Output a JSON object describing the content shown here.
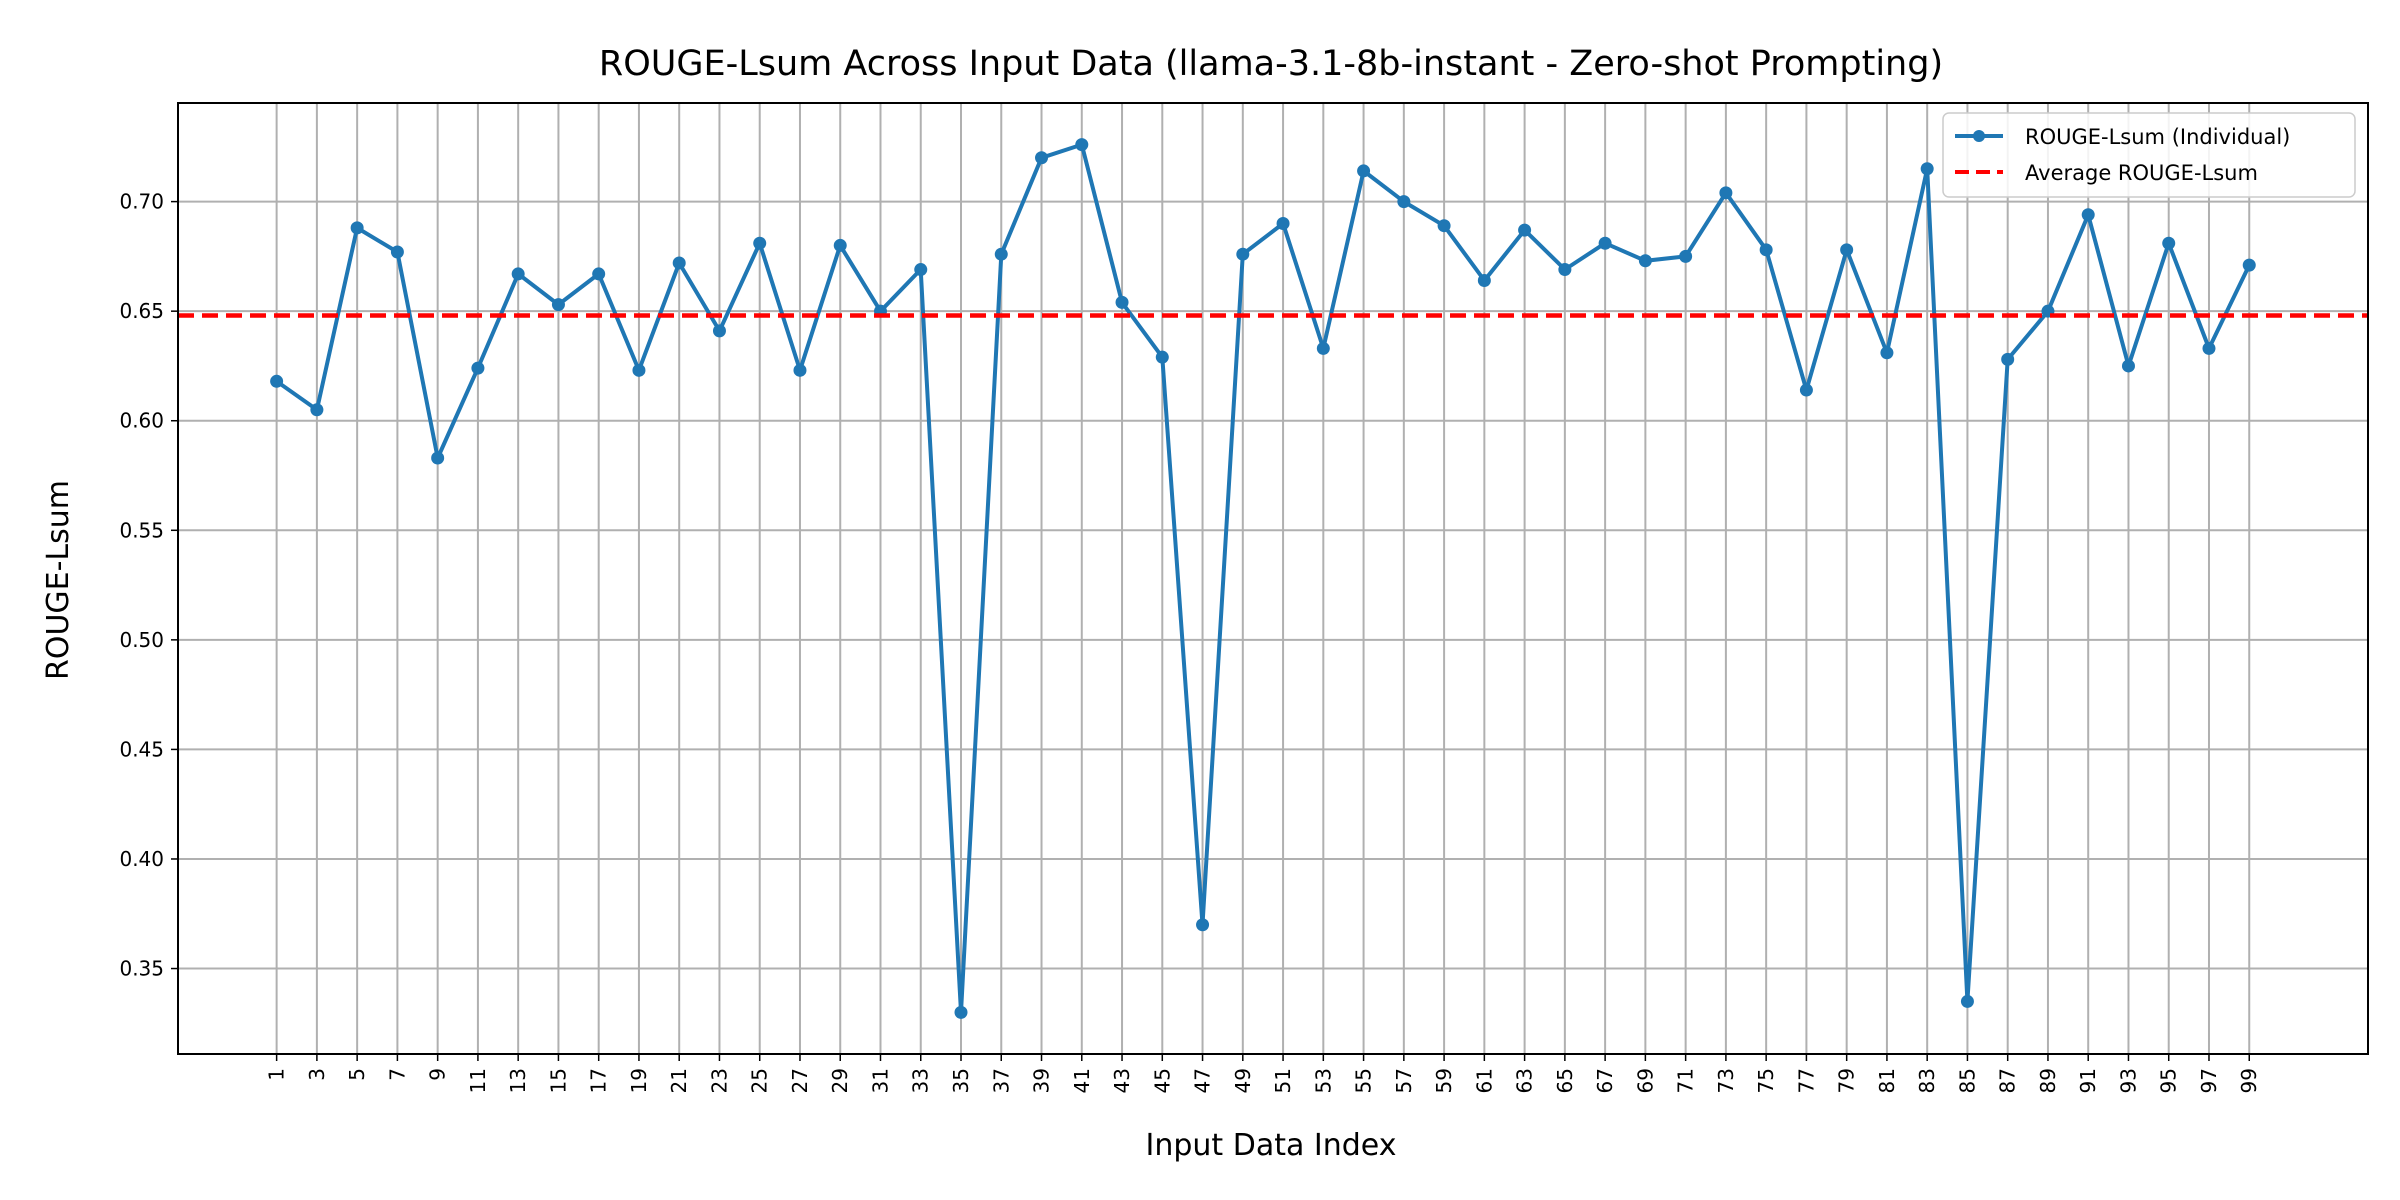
{
  "chart_data": {
    "type": "line",
    "title": "ROUGE-Lsum Across Input Data (llama-3.1-8b-instant - Zero-shot Prompting)",
    "xlabel": "Input Data Index",
    "ylabel": "ROUGE-Lsum",
    "x": [
      1,
      3,
      5,
      7,
      9,
      11,
      13,
      15,
      17,
      19,
      21,
      23,
      25,
      27,
      29,
      31,
      33,
      35,
      37,
      39,
      41,
      43,
      45,
      47,
      49,
      51,
      53,
      55,
      57,
      59,
      61,
      63,
      65,
      67,
      69,
      71,
      73,
      75,
      77,
      79,
      81,
      83,
      85,
      87,
      89,
      91,
      93,
      95,
      97,
      99
    ],
    "x_ticks": [
      "1",
      "3",
      "5",
      "7",
      "9",
      "11",
      "13",
      "15",
      "17",
      "19",
      "21",
      "23",
      "25",
      "27",
      "29",
      "31",
      "33",
      "35",
      "37",
      "39",
      "41",
      "43",
      "45",
      "47",
      "49",
      "51",
      "53",
      "55",
      "57",
      "59",
      "61",
      "63",
      "65",
      "67",
      "69",
      "71",
      "73",
      "75",
      "77",
      "79",
      "81",
      "83",
      "85",
      "87",
      "89",
      "91",
      "93",
      "95",
      "97",
      "99"
    ],
    "y_ticks": [
      "0.35",
      "0.40",
      "0.45",
      "0.50",
      "0.55",
      "0.60",
      "0.65",
      "0.70"
    ],
    "xlim": [
      -3.9,
      104.9
    ],
    "ylim": [
      0.311,
      0.745
    ],
    "grid": true,
    "legend_position": "top-right",
    "series": [
      {
        "name": "ROUGE-Lsum (Individual)",
        "color": "#1f77b4",
        "style": "line-with-markers",
        "values": [
          0.618,
          0.605,
          0.688,
          0.677,
          0.583,
          0.624,
          0.667,
          0.653,
          0.667,
          0.623,
          0.672,
          0.641,
          0.681,
          0.623,
          0.68,
          0.65,
          0.669,
          0.33,
          0.676,
          0.72,
          0.726,
          0.654,
          0.629,
          0.37,
          0.676,
          0.69,
          0.633,
          0.714,
          0.7,
          0.689,
          0.664,
          0.687,
          0.669,
          0.681,
          0.673,
          0.675,
          0.704,
          0.678,
          0.614,
          0.678,
          0.631,
          0.715,
          0.335,
          0.628,
          0.65,
          0.694,
          0.625,
          0.681,
          0.633,
          0.671
        ]
      },
      {
        "name": "Average ROUGE-Lsum",
        "color": "#ff0000",
        "style": "dashed",
        "value": 0.648
      }
    ]
  }
}
